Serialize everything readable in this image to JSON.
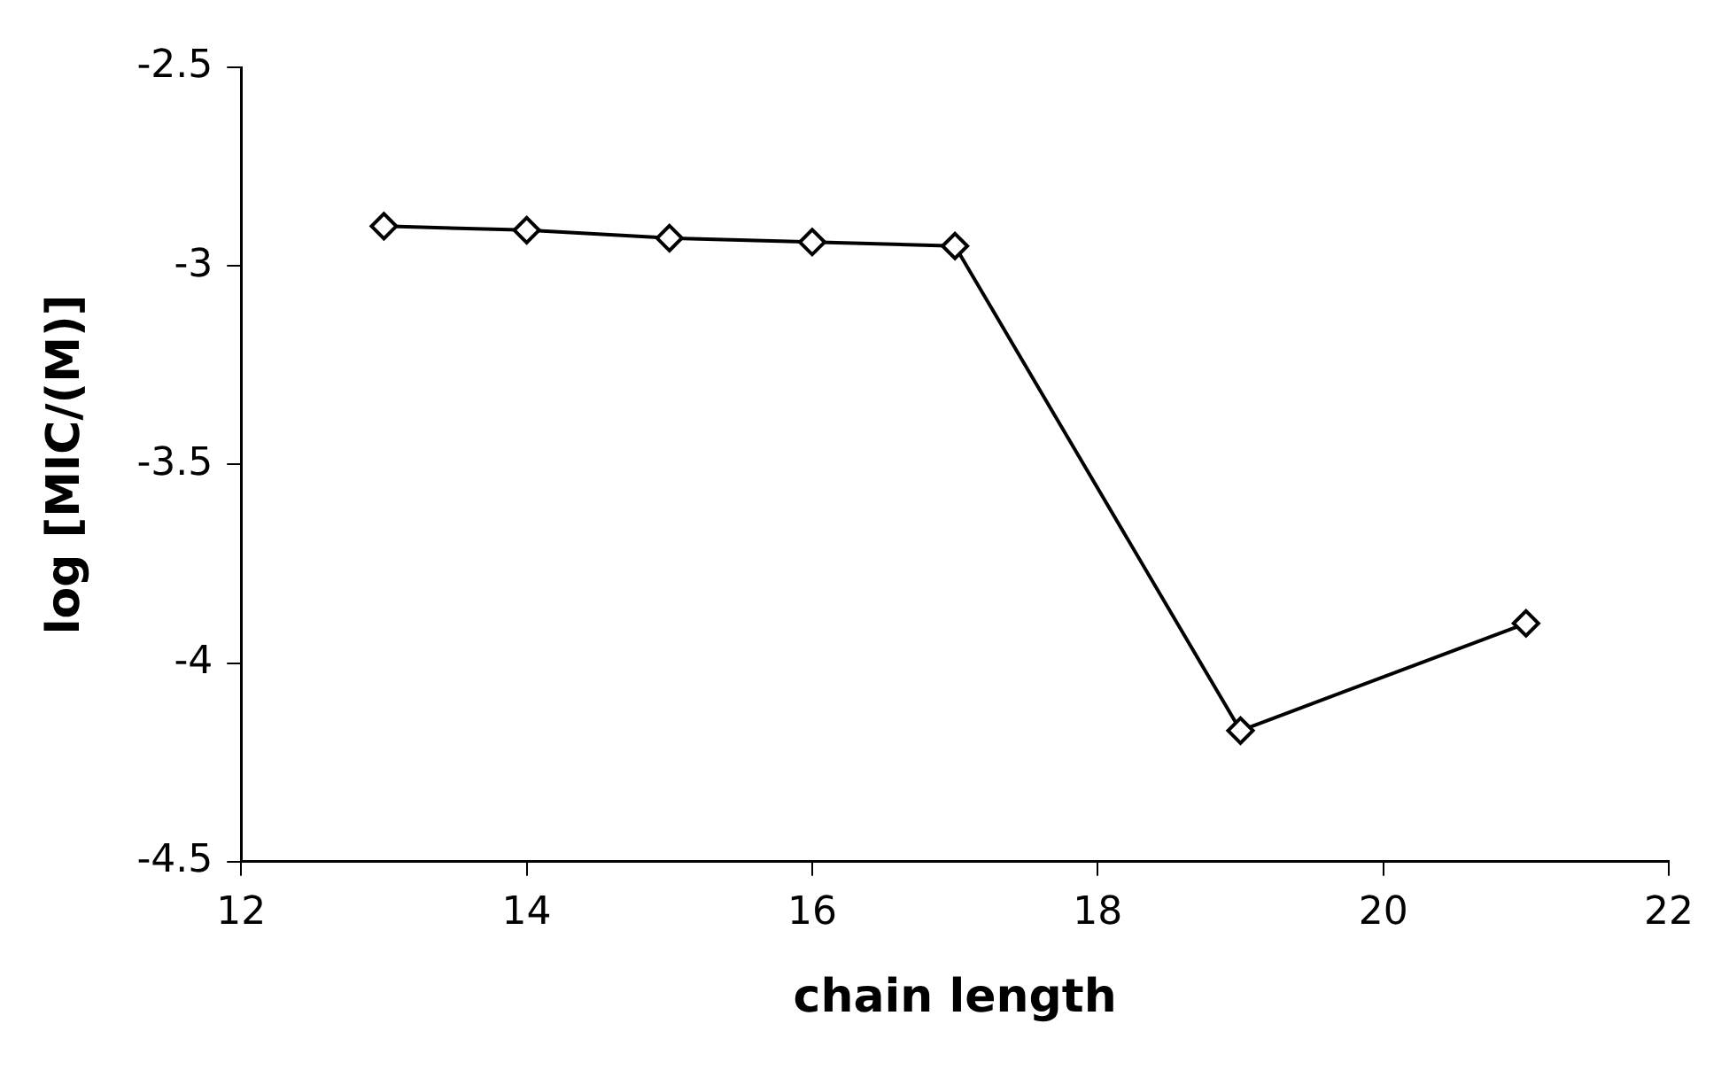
{
  "chart_data": {
    "type": "line",
    "xlabel": "chain length",
    "ylabel": "log [MIC/(M)]",
    "x": [
      13,
      14,
      15,
      16,
      17,
      19,
      21
    ],
    "series": [
      {
        "color": "#000000",
        "values": [
          -2.9,
          -2.91,
          -2.93,
          -2.94,
          -2.95,
          -4.17,
          -3.9
        ]
      }
    ],
    "xlim": [
      12,
      22
    ],
    "xticks": [
      12,
      14,
      16,
      18,
      20,
      22
    ],
    "ylim": [
      -4.5,
      -2.5
    ],
    "yticks": [
      -4.5,
      -4,
      -3.5,
      -3,
      -2.5
    ],
    "grid": false,
    "legend": false,
    "marker": "diamond",
    "line_style": "solid"
  }
}
